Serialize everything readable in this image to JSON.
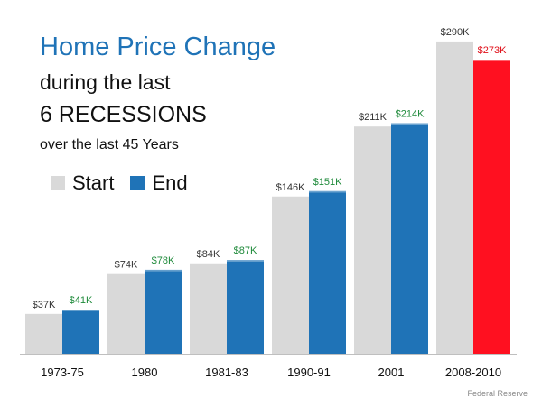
{
  "title": {
    "line1": "Home Price Change",
    "line2": "during the last",
    "line3": "6 RECESSIONS",
    "line4": "over the last 45 Years"
  },
  "legend": {
    "start": "Start",
    "end": "End"
  },
  "source": "Federal Reserve",
  "colors": {
    "start": "#d9d9d9",
    "end": "#1f73b7",
    "end_highlight": "#ff1020",
    "label_start": "#333333",
    "label_end": "#1e8a3a",
    "label_highlight": "#e0101a"
  },
  "chart_data": {
    "type": "bar",
    "categories": [
      "1973-75",
      "1980",
      "1981-83",
      "1990-91",
      "2001",
      "2008-2010"
    ],
    "series": [
      {
        "name": "Start",
        "values": [
          37,
          74,
          84,
          146,
          211,
          290
        ]
      },
      {
        "name": "End",
        "values": [
          41,
          78,
          87,
          151,
          214,
          273
        ]
      }
    ],
    "data_labels": {
      "Start": [
        "$37K",
        "$74K",
        "$84K",
        "$146K",
        "$211K",
        "$290K"
      ],
      "End": [
        "$41K",
        "$78K",
        "$87K",
        "$151K",
        "$214K",
        "$273K"
      ]
    },
    "highlight": {
      "series": "End",
      "category": "2008-2010"
    },
    "unit": "$K",
    "ylim": [
      0,
      300
    ],
    "grid": false,
    "legend_position": "top-left",
    "title": "Home Price Change during the last 6 RECESSIONS over the last 45 Years",
    "xlabel": "",
    "ylabel": ""
  }
}
